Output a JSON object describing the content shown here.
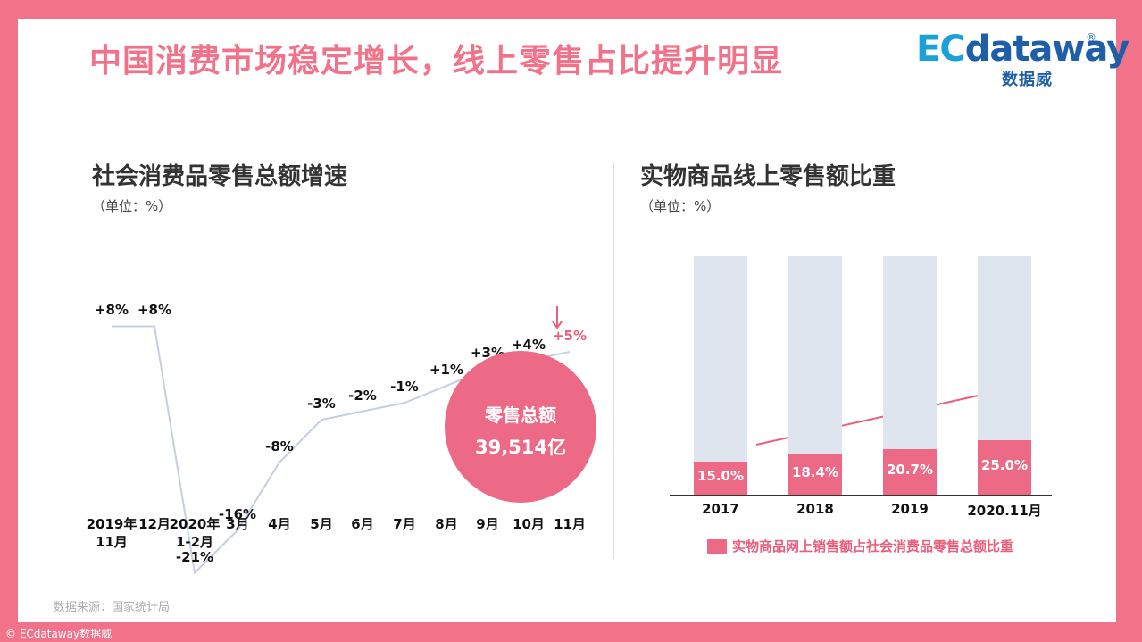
{
  "title": "中国消费市场稳定增长，线上零售占比提升明显",
  "logo": {
    "main_prefix": "EC",
    "main_rest": "dataway",
    "registered": "®",
    "sub": "数据威"
  },
  "colors": {
    "brand_pink": "#f2728a",
    "bar_pink": "#ec6a85",
    "bar_gray": "#dfe5ee",
    "line": "#c4cfe0",
    "logo_blue": "#1f5fa8"
  },
  "left_chart": {
    "title": "社会消费品零售总额增速",
    "unit": "（单位：%）",
    "callout": {
      "label": "零售总额",
      "value": "39,514亿"
    }
  },
  "right_chart": {
    "title": "实物商品线上零售额比重",
    "unit": "（单位：%）",
    "legend": "实物商品网上销售额占社会消费品零售总额比重"
  },
  "chart_data": [
    {
      "type": "line",
      "title": "社会消费品零售总额增速",
      "unit": "%",
      "categories": [
        "2019年11月",
        "12月",
        "2020年1-2月",
        "3月",
        "4月",
        "5月",
        "6月",
        "7月",
        "8月",
        "9月",
        "10月",
        "11月"
      ],
      "values": [
        8,
        8,
        -21,
        -16,
        -8,
        -3,
        -2,
        -1,
        1,
        3,
        4,
        5
      ],
      "data_labels": [
        "+8%",
        "+8%",
        "-21%",
        "-16%",
        "-8%",
        "-3%",
        "-2%",
        "-1%",
        "+1%",
        "+3%",
        "+4%",
        "+5%"
      ],
      "highlight_last": true,
      "grid": false
    },
    {
      "type": "bar",
      "title": "实物商品线上零售额比重",
      "unit": "%",
      "categories": [
        "2017",
        "2018",
        "2019",
        "2020.11月"
      ],
      "series": [
        {
          "name": "实物商品网上销售额占社会消费品零售总额比重",
          "values": [
            15.0,
            18.4,
            20.7,
            25.0
          ]
        }
      ],
      "data_labels": [
        "15.0%",
        "18.4%",
        "20.7%",
        "25.0%"
      ],
      "legend_position": "bottom",
      "trend_arrow": true,
      "grid": false
    }
  ],
  "source": "数据来源：国家统计局",
  "copyright": "© ECdataway数据威"
}
